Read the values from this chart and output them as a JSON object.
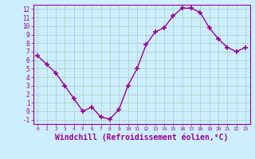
{
  "x": [
    0,
    1,
    2,
    3,
    4,
    5,
    6,
    7,
    8,
    9,
    10,
    11,
    12,
    13,
    14,
    15,
    16,
    17,
    18,
    19,
    20,
    21,
    22,
    23
  ],
  "y": [
    6.5,
    5.5,
    4.5,
    3.0,
    1.5,
    0.0,
    0.5,
    -0.7,
    -0.9,
    0.2,
    3.0,
    5.0,
    7.8,
    9.3,
    9.8,
    11.2,
    12.1,
    12.1,
    11.6,
    9.8,
    8.5,
    7.5,
    7.0,
    7.5
  ],
  "line_color": "#990099",
  "marker": "+",
  "markersize": 4,
  "markeredgewidth": 1.2,
  "linewidth": 1.0,
  "xlabel": "Windchill (Refroidissement éolien,°C)",
  "xlabel_fontsize": 7,
  "bg_color": "#cceeff",
  "grid_color": "#aaccbb",
  "tick_color": "#990099",
  "label_color": "#990099",
  "xlim": [
    -0.5,
    23.5
  ],
  "ylim": [
    -1.5,
    12.5
  ],
  "yticks": [
    -1,
    0,
    1,
    2,
    3,
    4,
    5,
    6,
    7,
    8,
    9,
    10,
    11,
    12
  ],
  "xticks": [
    0,
    1,
    2,
    3,
    4,
    5,
    6,
    7,
    8,
    9,
    10,
    11,
    12,
    13,
    14,
    15,
    16,
    17,
    18,
    19,
    20,
    21,
    22,
    23
  ]
}
